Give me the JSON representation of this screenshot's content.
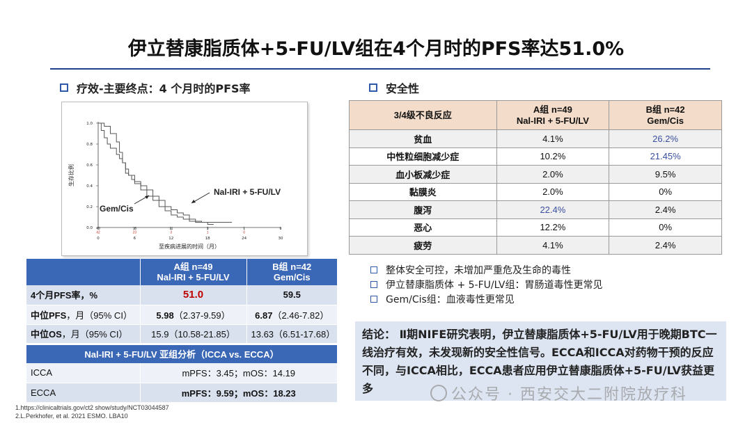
{
  "title": "伊立替康脂质体+5-FU/LV组在4个月时的PFS率达51.0%",
  "left_section": {
    "heading": "疗效-主要终点：4 个月时的PFS率"
  },
  "right_section": {
    "heading": "安全性"
  },
  "chart_data": {
    "type": "line",
    "title": "",
    "xlabel": "至疾病进展的时间（月）",
    "ylabel": "生存比例",
    "xticks": [
      "0",
      "6",
      "12",
      "18",
      "24",
      "30"
    ],
    "yticks": [
      "0.0",
      "0.2",
      "0.4",
      "0.6",
      "0.8",
      "1.0"
    ],
    "xlim": [
      0,
      30
    ],
    "ylim": [
      0,
      1
    ],
    "annotations": [
      "Nal-IRI + 5-FU/LV",
      "Gem/Cis"
    ],
    "at_risk": [
      {
        "color": "#333333",
        "values": [
          "49",
          "15",
          "11",
          "3",
          "1",
          "0"
        ]
      },
      {
        "color": "#c0392b",
        "values": [
          "42",
          "23",
          "3",
          "1",
          "0",
          ""
        ]
      }
    ],
    "series": [
      {
        "x": [
          0,
          1,
          2,
          3,
          3.5,
          4,
          4.5,
          5,
          5.5,
          6,
          7,
          8,
          9,
          10,
          11,
          12,
          13,
          14,
          15,
          16,
          18,
          22
        ],
        "y": [
          1.0,
          0.97,
          0.9,
          0.82,
          0.72,
          0.62,
          0.52,
          0.5,
          0.46,
          0.42,
          0.36,
          0.3,
          0.26,
          0.2,
          0.16,
          0.12,
          0.1,
          0.08,
          0.06,
          0.05,
          0.05,
          0.05
        ]
      },
      {
        "x": [
          0,
          0.5,
          1,
          1.5,
          2,
          3,
          3.5,
          4,
          4.5,
          5,
          6,
          7,
          8,
          9,
          10,
          11,
          12,
          13,
          14,
          15,
          16,
          17,
          18,
          19
        ],
        "y": [
          1.0,
          0.93,
          0.86,
          0.8,
          0.76,
          0.7,
          0.66,
          0.62,
          0.56,
          0.5,
          0.44,
          0.4,
          0.36,
          0.3,
          0.26,
          0.2,
          0.17,
          0.14,
          0.12,
          0.08,
          0.06,
          0.05,
          0.03,
          0.03
        ]
      }
    ]
  },
  "efficacy": {
    "col_a": "A组 n=49",
    "col_a2": "Nal-IRI + 5-FU/LV",
    "col_b": "B组 n=42",
    "col_b2": "Gem/Cis",
    "rows": [
      {
        "label": "4个月PFS率，%",
        "a": "51.0",
        "b": "59.5"
      },
      {
        "label_bold": "中位PFS",
        "label_rest": "，月（95% CI）",
        "a_bold": "5.98",
        "a_rest": "（2.37-9.59）",
        "b_bold": "6.87",
        "b_rest": "（2.46-7.82）"
      },
      {
        "label_bold": "中位OS",
        "label_rest": "，月（95% CI）",
        "a": "15.9（10.58-21.85）",
        "b": "13.63（6.51-17.68）"
      }
    ],
    "subgroup_header": "Nal-IRI + 5-FU/LV 亚组分析（ICCA vs. ECCA）",
    "subgroups": [
      {
        "label": "ICCA",
        "value": "mPFS：3.45；mOS：14.19"
      },
      {
        "label": "ECCA",
        "value": "mPFS：9.59；mOS：18.23"
      }
    ],
    "highlight_color": "#c00000"
  },
  "safety": {
    "col_0": "3/4级不良反应",
    "col_a": "A组 n=49",
    "col_a2": "Nal-IRI + 5-FU/LV",
    "col_b": "B组 n=42",
    "col_b2": "Gem/Cis",
    "rows": [
      {
        "name": "贫血",
        "a": "4.1%",
        "b": "26.2%"
      },
      {
        "name": "中性粒细胞减少症",
        "a": "10.2%",
        "b": "21.45%"
      },
      {
        "name": "血小板减少症",
        "a": "2.0%",
        "b": "9.5%"
      },
      {
        "name": "黏膜炎",
        "a": "2.0%",
        "b": "0%"
      },
      {
        "name": "腹泻",
        "a": "22.4%",
        "b": "2.4%"
      },
      {
        "name": "恶心",
        "a": "12.2%",
        "b": "0%"
      },
      {
        "name": "疲劳",
        "a": "4.1%",
        "b": "2.4%"
      }
    ],
    "highlight_color": "#3a4fa0"
  },
  "bullets": [
    "整体安全可控，未增加严重危及生命的毒性",
    "伊立替康脂质体 + 5-FU/LV组：胃肠道毒性更常见",
    "Gem/Cis组：血液毒性更常见"
  ],
  "conclusion": "结论： Ⅱ期NIFE研究表明，伊立替康脂质体+5-FU/LV用于晚期BTC一线治疗有效，未发现新的安全性信号。ECCA和ICCA对药物干预的反应不同，与ICCA相比，ECCA患者应用伊立替康脂质体+5-FU/LV获益更多",
  "watermark": "公众号 · 西安交大二附院放疗科",
  "references": [
    "1.https://clinicaltrials.gov/ct2 show/study/NCT03044587",
    "2.L.Perkhofer, et al. 2021 ESMO. LBA10"
  ]
}
